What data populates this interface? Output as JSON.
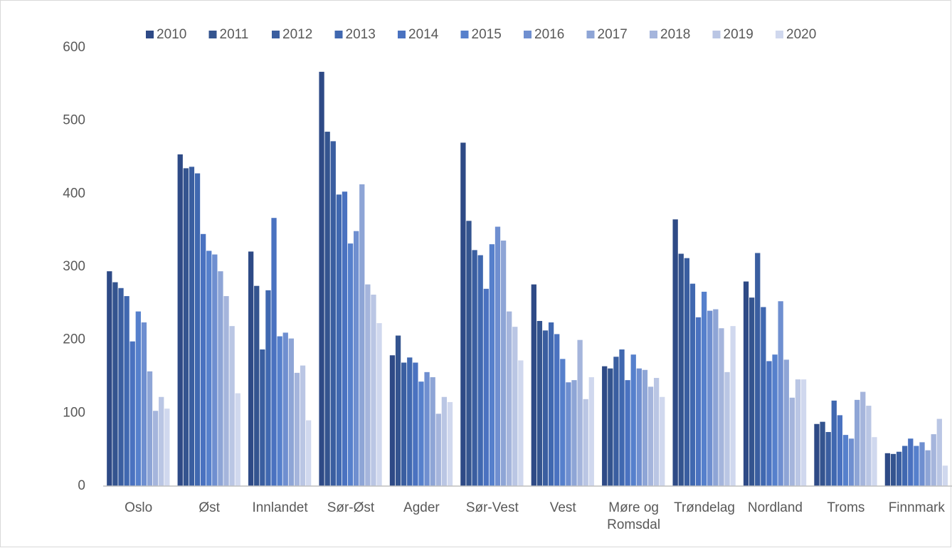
{
  "chart_data": {
    "type": "bar",
    "categories": [
      "Oslo",
      "Øst",
      "Innlandet",
      "Sør-Øst",
      "Agder",
      "Sør-Vest",
      "Vest",
      "Møre og Romsdal",
      "Trøndelag",
      "Nordland",
      "Troms",
      "Finnmark"
    ],
    "series": [
      {
        "name": "2010",
        "color": "#2e4a86",
        "values": [
          294,
          454,
          321,
          567,
          179,
          470,
          276,
          164,
          365,
          280,
          85,
          45
        ]
      },
      {
        "name": "2011",
        "color": "#34548f",
        "values": [
          279,
          435,
          274,
          485,
          206,
          363,
          226,
          161,
          318,
          258,
          88,
          44
        ]
      },
      {
        "name": "2012",
        "color": "#3a5ea0",
        "values": [
          271,
          437,
          187,
          472,
          169,
          323,
          213,
          177,
          312,
          319,
          74,
          47
        ]
      },
      {
        "name": "2013",
        "color": "#4068b0",
        "values": [
          260,
          428,
          268,
          399,
          176,
          316,
          224,
          187,
          277,
          245,
          117,
          55
        ]
      },
      {
        "name": "2014",
        "color": "#4a72c0",
        "values": [
          198,
          345,
          367,
          403,
          169,
          270,
          208,
          145,
          231,
          171,
          97,
          65
        ]
      },
      {
        "name": "2015",
        "color": "#5680cc",
        "values": [
          239,
          322,
          205,
          332,
          143,
          331,
          174,
          180,
          266,
          180,
          70,
          55
        ]
      },
      {
        "name": "2016",
        "color": "#6f8fd0",
        "values": [
          224,
          317,
          210,
          349,
          156,
          355,
          142,
          161,
          240,
          253,
          65,
          60
        ]
      },
      {
        "name": "2017",
        "color": "#8ea5d6",
        "values": [
          157,
          294,
          202,
          413,
          149,
          336,
          145,
          159,
          242,
          173,
          118,
          49
        ]
      },
      {
        "name": "2018",
        "color": "#a5b5dc",
        "values": [
          103,
          260,
          155,
          276,
          99,
          239,
          200,
          136,
          216,
          121,
          129,
          71
        ]
      },
      {
        "name": "2019",
        "color": "#bac6e4",
        "values": [
          122,
          219,
          165,
          262,
          122,
          218,
          119,
          148,
          156,
          146,
          110,
          92
        ]
      },
      {
        "name": "2020",
        "color": "#d0d8ee",
        "values": [
          106,
          127,
          90,
          223,
          115,
          172,
          149,
          122,
          219,
          146,
          67,
          28
        ]
      }
    ],
    "ylim": [
      0,
      600
    ],
    "yticks": [
      0,
      100,
      200,
      300,
      400,
      500,
      600
    ],
    "grid": false
  }
}
